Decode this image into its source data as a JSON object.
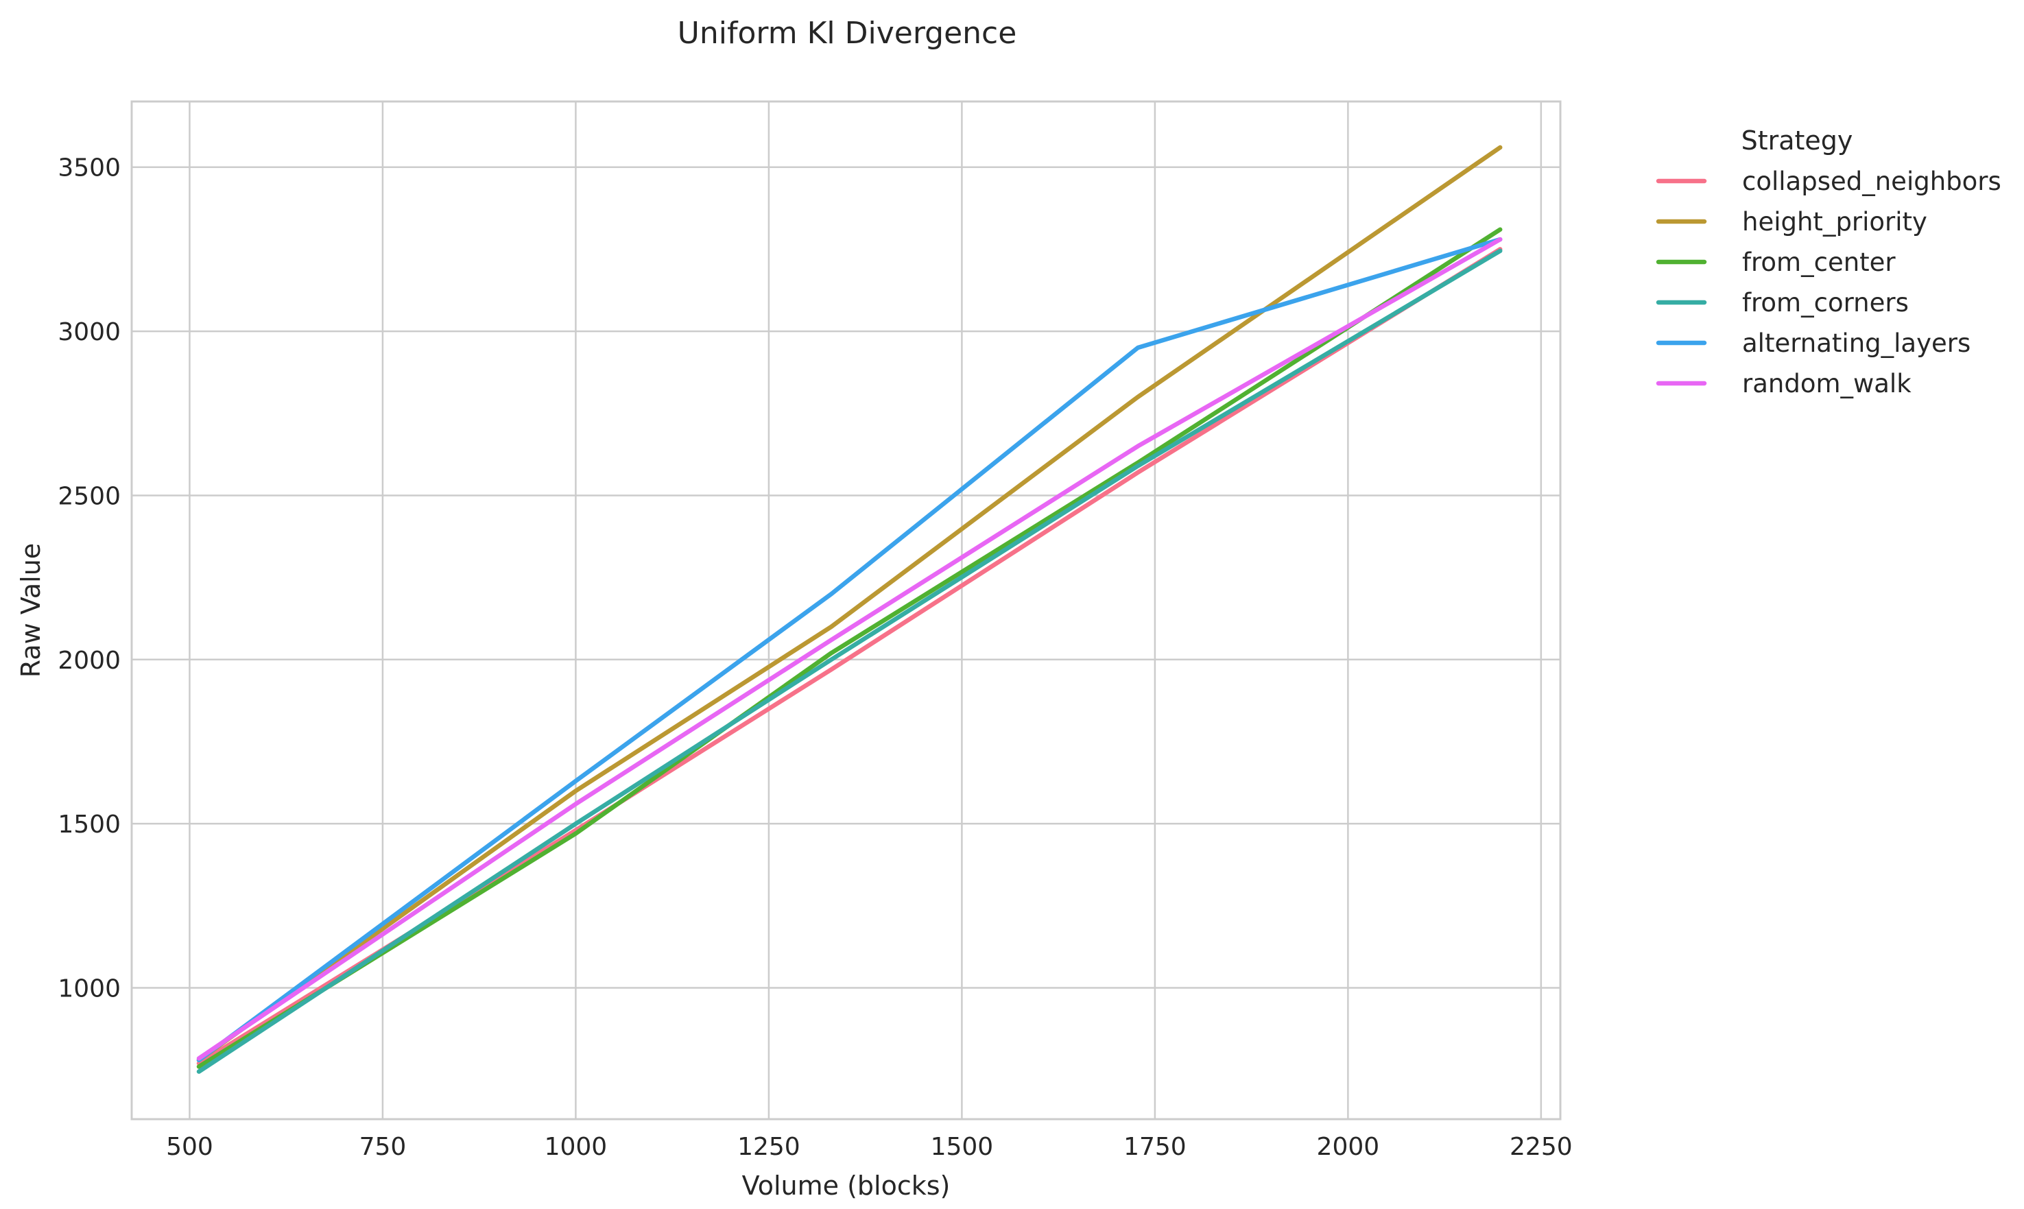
{
  "chart_data": {
    "type": "line",
    "title": "Uniform Kl Divergence",
    "xlabel": "Volume (blocks)",
    "ylabel": "Raw Value",
    "xlim": [
      425,
      2275
    ],
    "ylim": [
      600,
      3700
    ],
    "xticks": [
      500,
      750,
      1000,
      1250,
      1500,
      1750,
      2000,
      2250
    ],
    "yticks": [
      1000,
      1500,
      2000,
      2500,
      3000,
      3500
    ],
    "grid": true,
    "legend": {
      "title": "Strategy",
      "placement": "outside-top-right"
    },
    "x": [
      512,
      1000,
      1331,
      1728,
      2197
    ],
    "series": [
      {
        "name": "collapsed_neighbors",
        "color": "#f77189",
        "values": [
          770,
          1480,
          1970,
          2570,
          3250
        ]
      },
      {
        "name": "height_priority",
        "color": "#bb9832",
        "values": [
          780,
          1600,
          2100,
          2800,
          3560
        ]
      },
      {
        "name": "from_center",
        "color": "#50b131",
        "values": [
          760,
          1470,
          2020,
          2600,
          3310
        ]
      },
      {
        "name": "from_corners",
        "color": "#36ada4",
        "values": [
          745,
          1500,
          2000,
          2590,
          3245
        ]
      },
      {
        "name": "alternating_layers",
        "color": "#3ba3ec",
        "values": [
          780,
          1630,
          2200,
          2950,
          3280
        ]
      },
      {
        "name": "random_walk",
        "color": "#e866f4",
        "values": [
          785,
          1560,
          2060,
          2650,
          3280
        ]
      }
    ]
  }
}
